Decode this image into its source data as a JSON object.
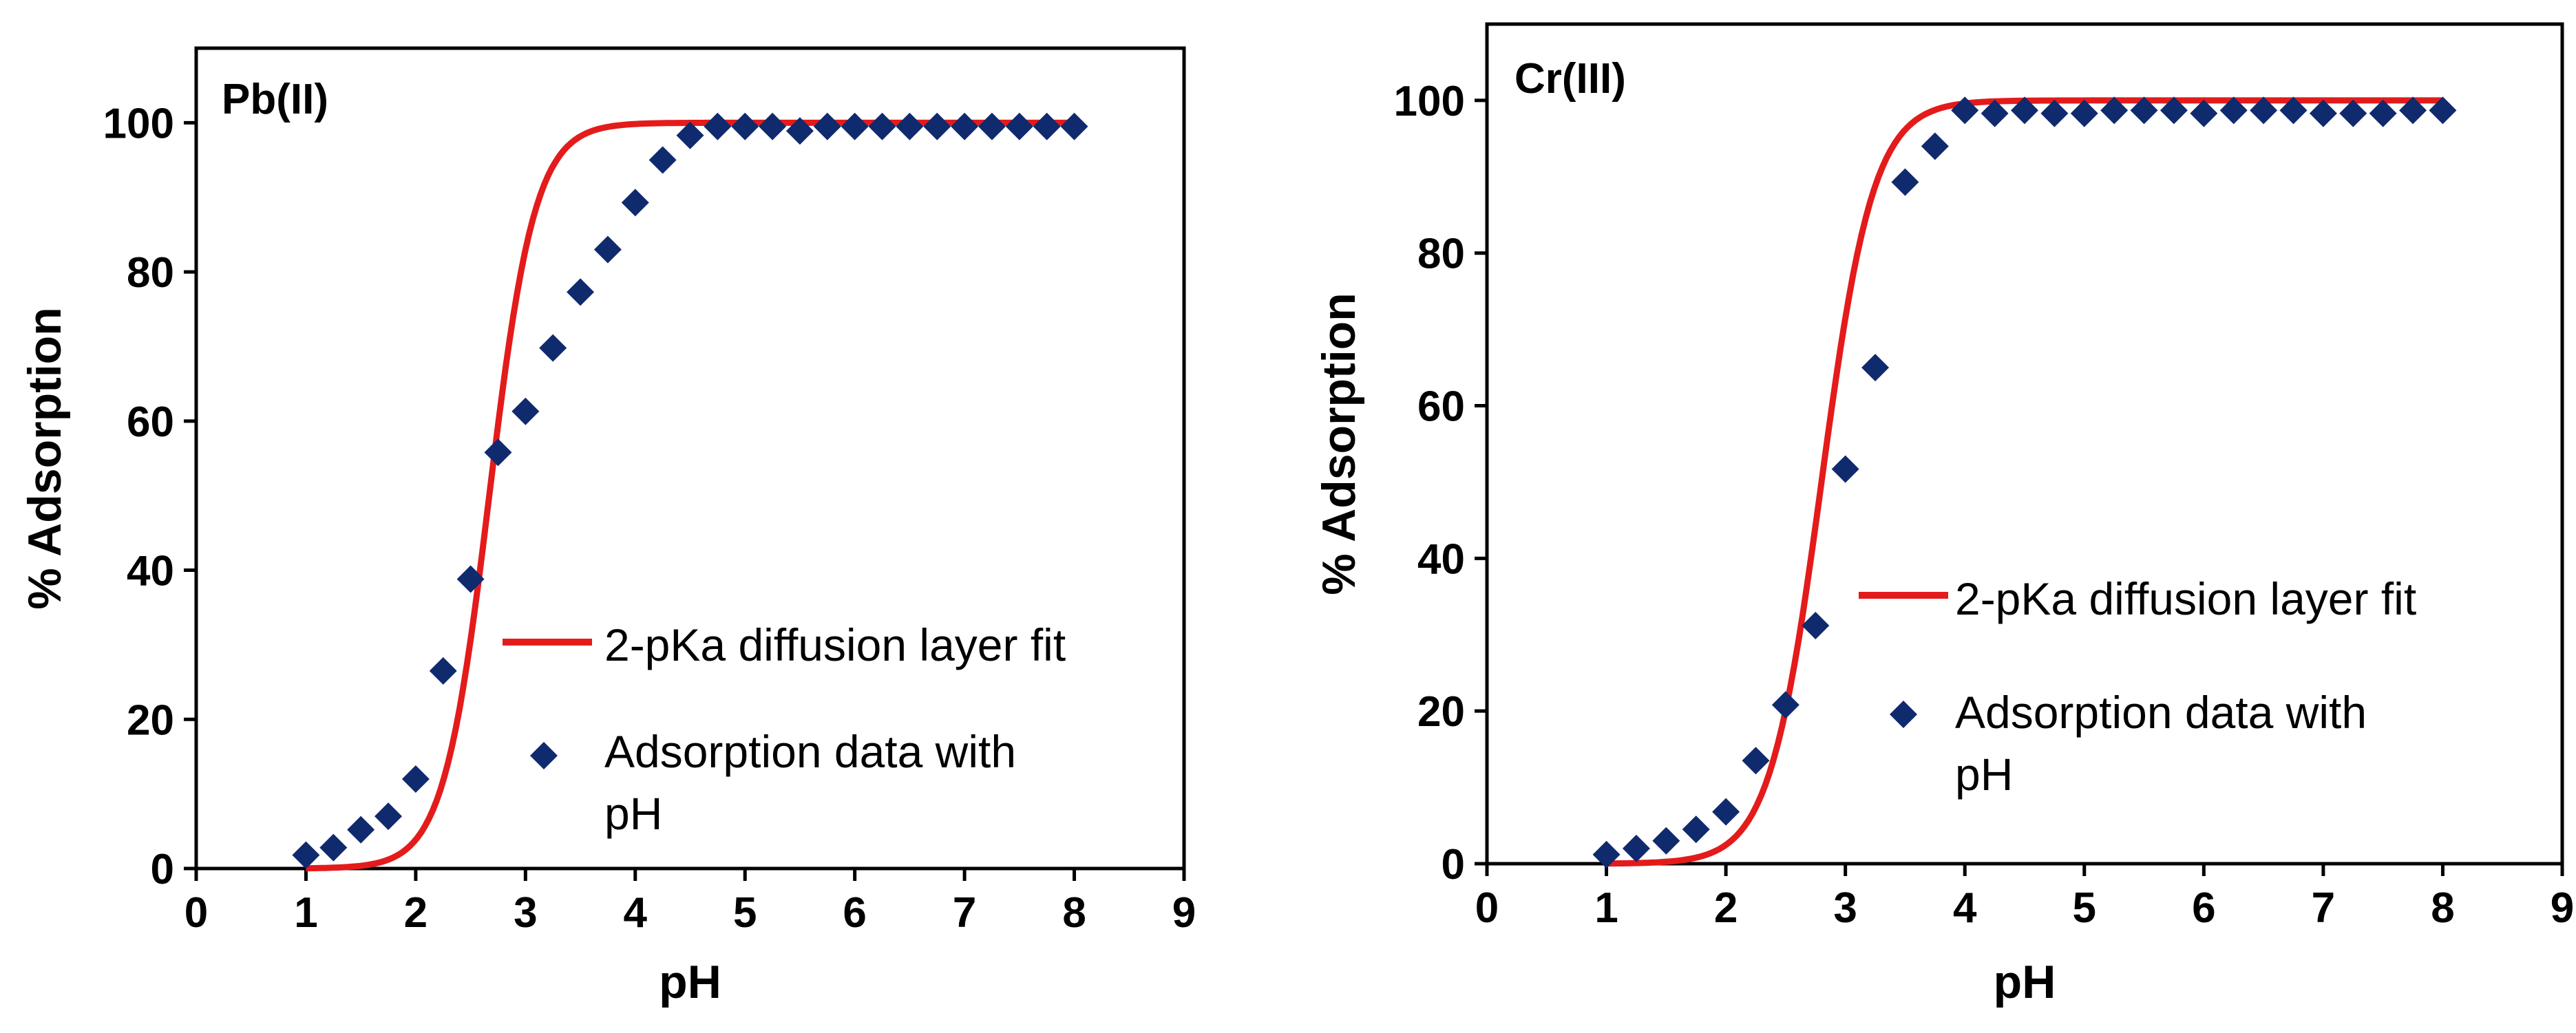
{
  "colors": {
    "fit": "#e41b1b",
    "data": "#102a6e",
    "axis": "#000000"
  },
  "chart_data": [
    {
      "type": "scatter",
      "title": "Pb(II)",
      "xlabel": "pH",
      "ylabel": "% Adsorption",
      "xlim": [
        0,
        9
      ],
      "ylim": [
        0,
        110
      ],
      "xticks": [
        "0",
        "1",
        "2",
        "3",
        "4",
        "5",
        "6",
        "7",
        "8",
        "9"
      ],
      "yticks": [
        "0",
        "20",
        "40",
        "60",
        "80",
        "100"
      ],
      "grid": false,
      "legend_position": "right-middle",
      "fit": {
        "name": "2-pKa diffusion layer fit",
        "type": "line",
        "center": 2.67,
        "slope": 4.8
      },
      "series": [
        {
          "name": "Adsorption data with pH",
          "x": [
            1.0,
            1.25,
            1.5,
            1.75,
            2.0,
            2.25,
            2.5,
            2.75,
            3.0,
            3.25,
            3.5,
            3.75,
            4.0,
            4.25,
            4.5,
            4.75,
            5.0,
            5.25,
            5.5,
            5.75,
            6.0,
            6.25,
            6.5,
            6.75,
            7.0,
            7.25,
            7.5,
            7.75,
            8.0
          ],
          "y": [
            1.8,
            2.8,
            5.2,
            7.0,
            12.0,
            26.5,
            38.8,
            55.8,
            61.3,
            69.8,
            77.3,
            83.0,
            89.3,
            95.0,
            98.3,
            99.5,
            99.5,
            99.5,
            98.9,
            99.5,
            99.5,
            99.5,
            99.5,
            99.5,
            99.5,
            99.5,
            99.5,
            99.5,
            99.5
          ]
        }
      ],
      "legend": [
        "2-pKa diffusion layer fit",
        "Adsorption data with",
        "pH"
      ]
    },
    {
      "type": "scatter",
      "title": "Cr(III)",
      "xlabel": "pH",
      "ylabel": "% Adsorption",
      "xlim": [
        0,
        9
      ],
      "ylim": [
        0,
        110
      ],
      "xticks": [
        "0",
        "1",
        "2",
        "3",
        "4",
        "5",
        "6",
        "7",
        "8",
        "9"
      ],
      "yticks": [
        "0",
        "20",
        "40",
        "60",
        "80",
        "100"
      ],
      "grid": false,
      "legend_position": "right-middle",
      "fit": {
        "name": "2-pKa diffusion layer fit",
        "type": "line",
        "center": 2.8,
        "slope": 4.6
      },
      "series": [
        {
          "name": "Adsorption data with pH",
          "x": [
            1.0,
            1.25,
            1.5,
            1.75,
            2.0,
            2.25,
            2.5,
            2.75,
            3.0,
            3.25,
            3.5,
            3.75,
            4.0,
            4.25,
            4.5,
            4.75,
            5.0,
            5.25,
            5.5,
            5.75,
            6.0,
            6.25,
            6.5,
            6.75,
            7.0,
            7.25,
            7.5,
            7.75,
            8.0
          ],
          "y": [
            1.2,
            2.0,
            3.0,
            4.5,
            6.8,
            13.5,
            20.8,
            31.2,
            51.7,
            65.0,
            89.3,
            94.0,
            98.7,
            98.3,
            98.7,
            98.3,
            98.3,
            98.7,
            98.7,
            98.7,
            98.3,
            98.7,
            98.7,
            98.7,
            98.3,
            98.3,
            98.3,
            98.7,
            98.7
          ]
        }
      ],
      "legend": [
        "2-pKa diffusion layer fit",
        "Adsorption data with",
        "pH"
      ]
    }
  ]
}
